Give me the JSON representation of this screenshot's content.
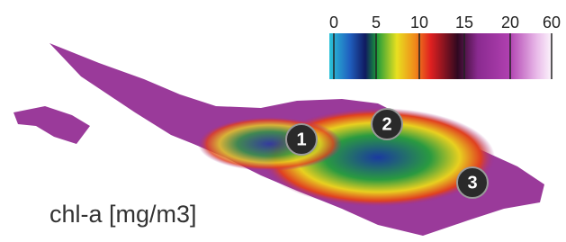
{
  "colorbar": {
    "ticks": [
      0,
      5,
      10,
      15,
      20,
      60
    ]
  },
  "label": "chl-a [mg/m3]",
  "markers": [
    "1",
    "2",
    "3"
  ]
}
